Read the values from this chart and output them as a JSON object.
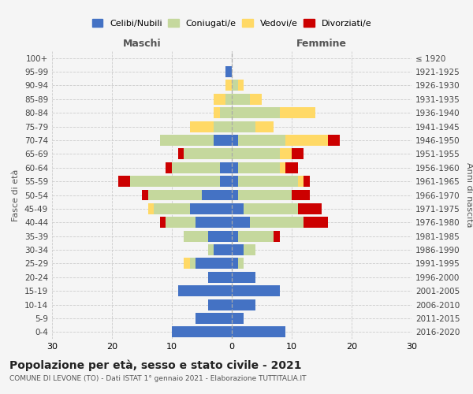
{
  "age_groups": [
    "0-4",
    "5-9",
    "10-14",
    "15-19",
    "20-24",
    "25-29",
    "30-34",
    "35-39",
    "40-44",
    "45-49",
    "50-54",
    "55-59",
    "60-64",
    "65-69",
    "70-74",
    "75-79",
    "80-84",
    "85-89",
    "90-94",
    "95-99",
    "100+"
  ],
  "birth_years": [
    "2016-2020",
    "2011-2015",
    "2006-2010",
    "2001-2005",
    "1996-2000",
    "1991-1995",
    "1986-1990",
    "1981-1985",
    "1976-1980",
    "1971-1975",
    "1966-1970",
    "1961-1965",
    "1956-1960",
    "1951-1955",
    "1946-1950",
    "1941-1945",
    "1936-1940",
    "1931-1935",
    "1926-1930",
    "1921-1925",
    "≤ 1920"
  ],
  "male_celibi": [
    10,
    6,
    4,
    9,
    4,
    6,
    3,
    4,
    6,
    7,
    5,
    2,
    2,
    0,
    3,
    0,
    0,
    0,
    0,
    1,
    0
  ],
  "male_coniugati": [
    0,
    0,
    0,
    0,
    0,
    1,
    1,
    4,
    5,
    6,
    9,
    15,
    8,
    8,
    9,
    3,
    2,
    1,
    0,
    0,
    0
  ],
  "male_vedovi": [
    0,
    0,
    0,
    0,
    0,
    1,
    0,
    0,
    0,
    1,
    0,
    0,
    0,
    0,
    0,
    4,
    1,
    2,
    1,
    0,
    0
  ],
  "male_divorziati": [
    0,
    0,
    0,
    0,
    0,
    0,
    0,
    0,
    1,
    0,
    1,
    2,
    1,
    1,
    0,
    0,
    0,
    0,
    0,
    0,
    0
  ],
  "female_celibi": [
    9,
    2,
    4,
    8,
    4,
    1,
    2,
    1,
    3,
    2,
    1,
    1,
    1,
    0,
    1,
    0,
    0,
    0,
    0,
    0,
    0
  ],
  "female_coniugati": [
    0,
    0,
    0,
    0,
    0,
    1,
    2,
    6,
    9,
    9,
    9,
    10,
    7,
    8,
    8,
    4,
    8,
    3,
    1,
    0,
    0
  ],
  "female_vedovi": [
    0,
    0,
    0,
    0,
    0,
    0,
    0,
    0,
    0,
    0,
    0,
    1,
    1,
    2,
    7,
    3,
    6,
    2,
    1,
    0,
    0
  ],
  "female_divorziati": [
    0,
    0,
    0,
    0,
    0,
    0,
    0,
    1,
    4,
    4,
    3,
    1,
    2,
    2,
    2,
    0,
    0,
    0,
    0,
    0,
    0
  ],
  "color_celibi": "#4472c4",
  "color_coniugati": "#c5d89d",
  "color_vedovi": "#ffd966",
  "color_divorziati": "#cc0000",
  "title": "Popolazione per età, sesso e stato civile - 2021",
  "subtitle": "COMUNE DI LEVONE (TO) - Dati ISTAT 1° gennaio 2021 - Elaborazione TUTTITALIA.IT",
  "xlabel_left": "Maschi",
  "xlabel_right": "Femmine",
  "ylabel_left": "Fasce di età",
  "ylabel_right": "Anni di nascita",
  "xlim": 30,
  "background_color": "#f5f5f5"
}
